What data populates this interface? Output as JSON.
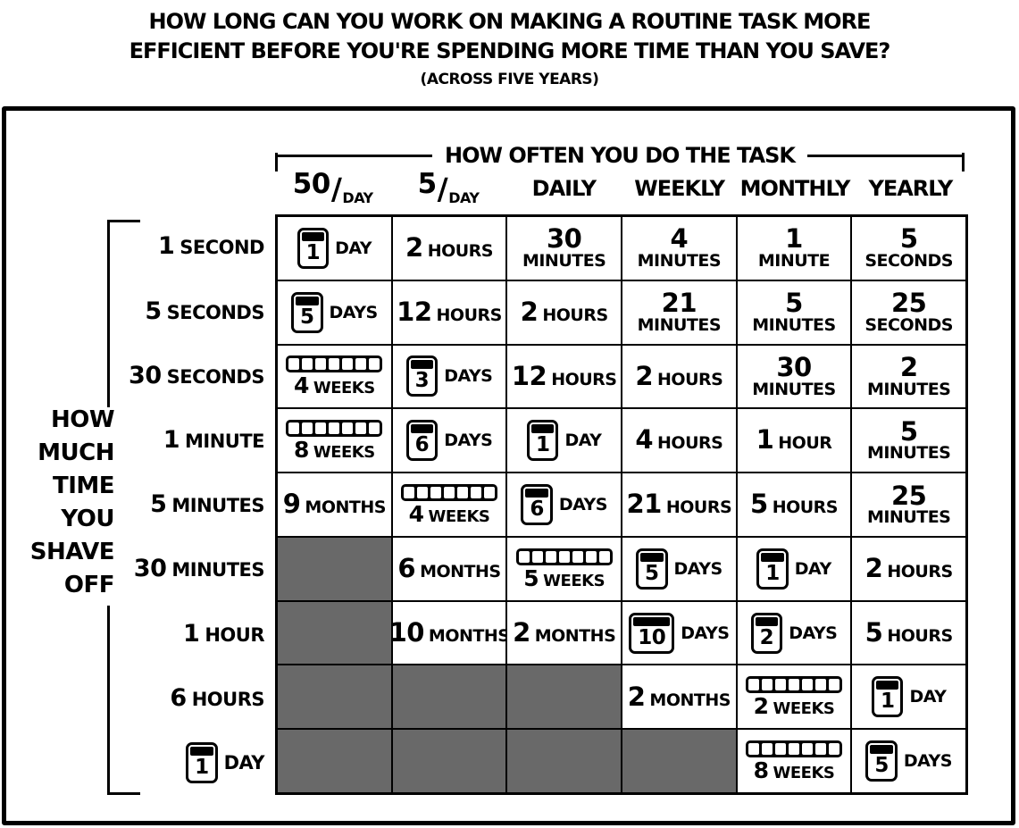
{
  "title": {
    "line1": "HOW LONG CAN YOU WORK ON MAKING A ROUTINE TASK MORE",
    "line2": "EFFICIENT BEFORE YOU'RE SPENDING MORE TIME THAN YOU SAVE?",
    "subtitle": "(ACROSS FIVE YEARS)"
  },
  "colors": {
    "background": "#ffffff",
    "ink": "#000000",
    "empty_cell": "#696969"
  },
  "chart_data": {
    "type": "table",
    "title": "HOW LONG CAN YOU WORK ON MAKING A ROUTINE TASK MORE EFFICIENT BEFORE YOU'RE SPENDING MORE TIME THAN YOU SAVE? (ACROSS FIVE YEARS)",
    "column_axis_label": "HOW OFTEN YOU DO THE TASK",
    "row_axis_label": "HOW MUCH TIME YOU SHAVE OFF",
    "columns": [
      {
        "label": "50/DAY",
        "num": "50",
        "slash": "/",
        "den": "DAY"
      },
      {
        "label": "5/DAY",
        "num": "5",
        "slash": "/",
        "den": "DAY"
      },
      {
        "label": "DAILY"
      },
      {
        "label": "WEEKLY"
      },
      {
        "label": "MONTHLY"
      },
      {
        "label": "YEARLY"
      }
    ],
    "rows": [
      {
        "kind": "text",
        "lines": [
          "1 SECOND"
        ]
      },
      {
        "kind": "text",
        "lines": [
          "5 SECONDS"
        ]
      },
      {
        "kind": "text",
        "lines": [
          "30 SECONDS"
        ]
      },
      {
        "kind": "text",
        "lines": [
          "1 MINUTE"
        ]
      },
      {
        "kind": "text",
        "lines": [
          "5 MINUTES"
        ]
      },
      {
        "kind": "text",
        "lines": [
          "30 MINUTES"
        ]
      },
      {
        "kind": "text",
        "lines": [
          "1 HOUR"
        ]
      },
      {
        "kind": "text",
        "lines": [
          "6 HOURS"
        ]
      },
      {
        "kind": "cal",
        "num": "1",
        "label": "DAY"
      }
    ],
    "cells": [
      [
        {
          "kind": "cal",
          "num": "1",
          "label": "DAY"
        },
        {
          "kind": "text",
          "lines": [
            "2 HOURS"
          ]
        },
        {
          "kind": "text",
          "lines": [
            "30",
            "MINUTES"
          ]
        },
        {
          "kind": "text",
          "lines": [
            "4",
            "MINUTES"
          ]
        },
        {
          "kind": "text",
          "lines": [
            "1",
            "MINUTE"
          ]
        },
        {
          "kind": "text",
          "lines": [
            "5",
            "SECONDS"
          ]
        }
      ],
      [
        {
          "kind": "cal",
          "num": "5",
          "label": "DAYS"
        },
        {
          "kind": "text",
          "lines": [
            "12 HOURS"
          ]
        },
        {
          "kind": "text",
          "lines": [
            "2 HOURS"
          ]
        },
        {
          "kind": "text",
          "lines": [
            "21",
            "MINUTES"
          ]
        },
        {
          "kind": "text",
          "lines": [
            "5",
            "MINUTES"
          ]
        },
        {
          "kind": "text",
          "lines": [
            "25",
            "SECONDS"
          ]
        }
      ],
      [
        {
          "kind": "weeks",
          "label": "4 WEEKS"
        },
        {
          "kind": "cal",
          "num": "3",
          "label": "DAYS"
        },
        {
          "kind": "text",
          "lines": [
            "12 HOURS"
          ]
        },
        {
          "kind": "text",
          "lines": [
            "2 HOURS"
          ]
        },
        {
          "kind": "text",
          "lines": [
            "30",
            "MINUTES"
          ]
        },
        {
          "kind": "text",
          "lines": [
            "2",
            "MINUTES"
          ]
        }
      ],
      [
        {
          "kind": "weeks",
          "label": "8 WEEKS"
        },
        {
          "kind": "cal",
          "num": "6",
          "label": "DAYS"
        },
        {
          "kind": "cal",
          "num": "1",
          "label": "DAY"
        },
        {
          "kind": "text",
          "lines": [
            "4 HOURS"
          ]
        },
        {
          "kind": "text",
          "lines": [
            "1 HOUR"
          ]
        },
        {
          "kind": "text",
          "lines": [
            "5",
            "MINUTES"
          ]
        }
      ],
      [
        {
          "kind": "text",
          "lines": [
            "9 MONTHS"
          ]
        },
        {
          "kind": "weeks",
          "label": "4 WEEKS"
        },
        {
          "kind": "cal",
          "num": "6",
          "label": "DAYS"
        },
        {
          "kind": "text",
          "lines": [
            "21 HOURS"
          ]
        },
        {
          "kind": "text",
          "lines": [
            "5 HOURS"
          ]
        },
        {
          "kind": "text",
          "lines": [
            "25",
            "MINUTES"
          ]
        }
      ],
      [
        {
          "kind": "empty"
        },
        {
          "kind": "text",
          "lines": [
            "6 MONTHS"
          ]
        },
        {
          "kind": "weeks",
          "label": "5 WEEKS"
        },
        {
          "kind": "cal",
          "num": "5",
          "label": "DAYS"
        },
        {
          "kind": "cal",
          "num": "1",
          "label": "DAY"
        },
        {
          "kind": "text",
          "lines": [
            "2 HOURS"
          ]
        }
      ],
      [
        {
          "kind": "empty"
        },
        {
          "kind": "text",
          "lines": [
            "10 MONTHS"
          ]
        },
        {
          "kind": "text",
          "lines": [
            "2 MONTHS"
          ]
        },
        {
          "kind": "cal",
          "num": "10",
          "label": "DAYS"
        },
        {
          "kind": "cal",
          "num": "2",
          "label": "DAYS"
        },
        {
          "kind": "text",
          "lines": [
            "5 HOURS"
          ]
        }
      ],
      [
        {
          "kind": "empty"
        },
        {
          "kind": "empty"
        },
        {
          "kind": "empty"
        },
        {
          "kind": "text",
          "lines": [
            "2 MONTHS"
          ]
        },
        {
          "kind": "weeks",
          "label": "2 WEEKS"
        },
        {
          "kind": "cal",
          "num": "1",
          "label": "DAY"
        }
      ],
      [
        {
          "kind": "empty"
        },
        {
          "kind": "empty"
        },
        {
          "kind": "empty"
        },
        {
          "kind": "empty"
        },
        {
          "kind": "weeks",
          "label": "8 WEEKS"
        },
        {
          "kind": "cal",
          "num": "5",
          "label": "DAYS"
        }
      ]
    ]
  }
}
